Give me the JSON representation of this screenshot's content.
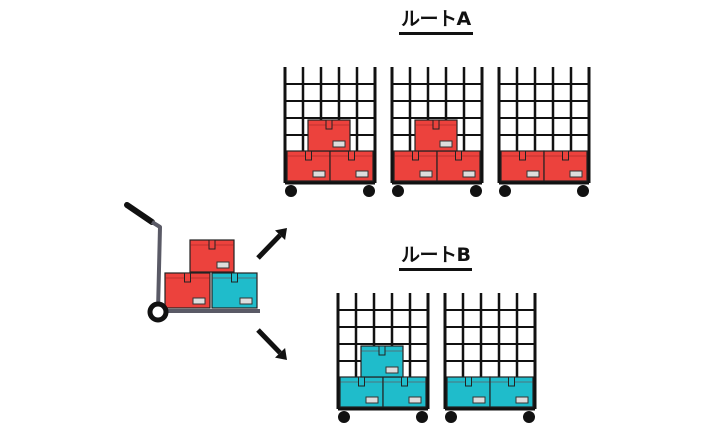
{
  "colors": {
    "red": "#ec423d",
    "cyan": "#1fbccb",
    "frame": "#111111",
    "handle": "#5a5a66"
  },
  "hand_truck": {
    "boxes": [
      "red",
      "red",
      "cyan"
    ]
  },
  "routes": [
    {
      "label": "ルートA",
      "carts": [
        {
          "color": "red",
          "top_box": true
        },
        {
          "color": "red",
          "top_box": true
        },
        {
          "color": "red",
          "top_box": false
        }
      ]
    },
    {
      "label": "ルートB",
      "carts": [
        {
          "color": "cyan",
          "top_box": true
        },
        {
          "color": "cyan",
          "top_box": false
        }
      ]
    }
  ]
}
